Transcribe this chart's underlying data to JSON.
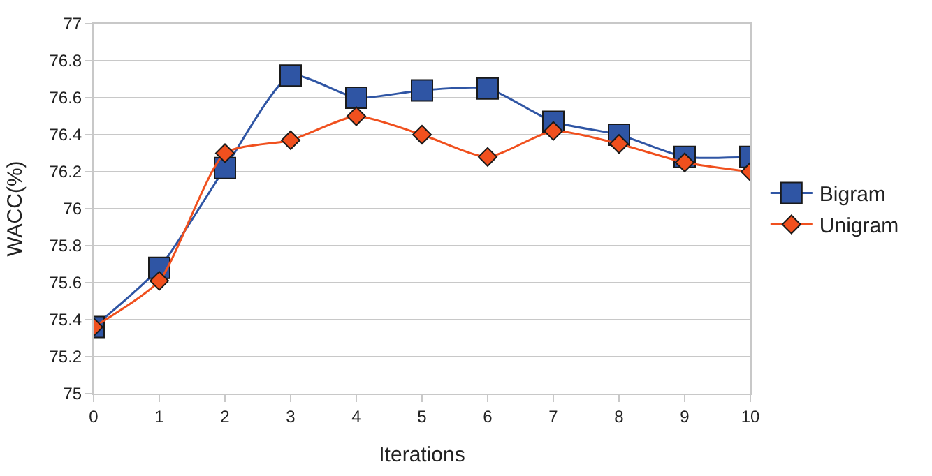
{
  "chart_data": {
    "type": "line",
    "xlabel": "Iterations",
    "ylabel": "WACC(%)",
    "x": [
      0,
      1,
      2,
      3,
      4,
      5,
      6,
      7,
      8,
      9,
      10
    ],
    "series": [
      {
        "name": "Bigram",
        "color": "#2f55a4",
        "marker": "square",
        "values": [
          75.36,
          75.68,
          76.22,
          76.72,
          76.6,
          76.64,
          76.65,
          76.47,
          76.4,
          76.28,
          76.28
        ]
      },
      {
        "name": "Unigram",
        "color": "#f0501e",
        "marker": "diamond",
        "values": [
          75.36,
          75.61,
          76.3,
          76.37,
          76.5,
          76.4,
          76.28,
          76.42,
          76.35,
          76.25,
          76.2
        ]
      }
    ],
    "xlim": [
      0,
      10
    ],
    "xticks": [
      0,
      1,
      2,
      3,
      4,
      5,
      6,
      7,
      8,
      9,
      10
    ],
    "ylim": [
      75,
      77
    ],
    "yticks": [
      75,
      75.2,
      75.4,
      75.6,
      75.8,
      76,
      76.2,
      76.4,
      76.6,
      76.8,
      77
    ],
    "grid": "y",
    "legend": "right",
    "line_style": "solid"
  }
}
